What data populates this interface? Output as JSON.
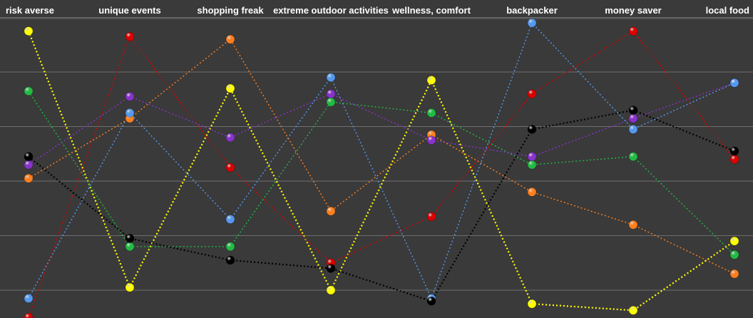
{
  "chart_data": {
    "type": "line",
    "title": "",
    "xlabel": "",
    "ylabel": "",
    "categories": [
      "risk averse",
      "unique events",
      "shopping freak",
      "extreme outdoor activities",
      "wellness, comfort",
      "backpacker",
      "money saver",
      "local food"
    ],
    "ylim": [
      0,
      6
    ],
    "grid": true,
    "gridlines": [
      1,
      2,
      3,
      4,
      5
    ],
    "line_style": "dotted",
    "series": [
      {
        "color": "#ffff00",
        "values": [
          4.75,
          0.05,
          3.7,
          0.0,
          3.85,
          -0.25,
          -0.37,
          0.9
        ]
      },
      {
        "color": "#dd0000",
        "values": [
          -0.5,
          4.65,
          2.25,
          0.5,
          1.35,
          3.6,
          4.75,
          2.4
        ]
      },
      {
        "color": "#22bb44",
        "values": [
          3.65,
          0.8,
          0.8,
          3.45,
          3.25,
          2.3,
          2.45,
          0.65
        ]
      },
      {
        "color": "#ff7f1e",
        "values": [
          2.05,
          3.15,
          4.6,
          1.45,
          2.85,
          1.8,
          1.2,
          0.3
        ]
      },
      {
        "color": "#8833cc",
        "values": [
          2.3,
          3.55,
          2.8,
          3.6,
          2.75,
          2.45,
          3.15,
          3.8
        ]
      },
      {
        "color": "#5599ee",
        "values": [
          -0.15,
          3.25,
          1.3,
          3.9,
          -0.15,
          4.9,
          2.95,
          3.8
        ]
      },
      {
        "color": "#000000",
        "values": [
          2.45,
          0.95,
          0.55,
          0.4,
          -0.2,
          2.95,
          3.3,
          2.55
        ]
      }
    ]
  }
}
